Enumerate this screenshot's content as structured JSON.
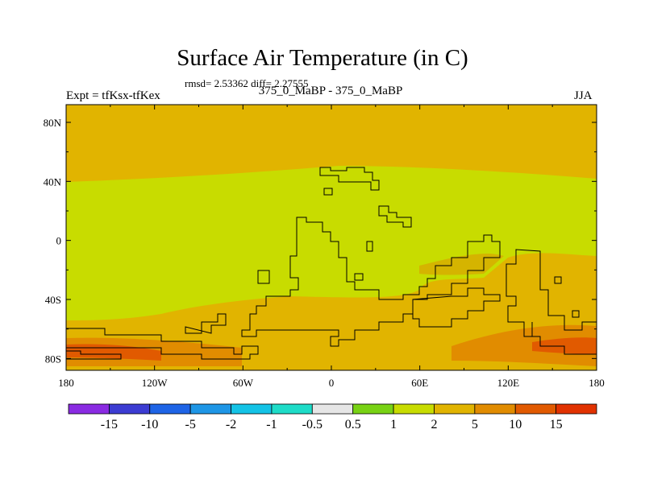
{
  "title": "Surface Air Temperature (in C)",
  "stats": "rmsd= 2.53362 diff= 2.27555",
  "experiment": "Expt = tfKsx-tfKex",
  "runs": "375_0_MaBP - 375_0_MaBP",
  "season": "JJA",
  "axes": {
    "lon_ticks": [
      {
        "lon": -180,
        "label": "180"
      },
      {
        "lon": -120,
        "label": "120W"
      },
      {
        "lon": -60,
        "label": "60W"
      },
      {
        "lon": 0,
        "label": "0"
      },
      {
        "lon": 60,
        "label": "60E"
      },
      {
        "lon": 120,
        "label": "120E"
      },
      {
        "lon": 180,
        "label": "180"
      }
    ],
    "lat_ticks": [
      {
        "lat": 80,
        "label": "80N"
      },
      {
        "lat": 40,
        "label": "40N"
      },
      {
        "lat": 0,
        "label": "0"
      },
      {
        "lat": -40,
        "label": "40S"
      },
      {
        "lat": -80,
        "label": "80S"
      }
    ]
  },
  "colorbar": {
    "colors": [
      "#8a2be2",
      "#3c3cd2",
      "#1e64e6",
      "#1e96e6",
      "#14c3e6",
      "#1edcc8",
      "#e6e6e6",
      "#78d214",
      "#c8dc00",
      "#e1b400",
      "#e18c00",
      "#e15a00",
      "#e13200"
    ],
    "labels": [
      "-15",
      "-10",
      "-5",
      "-2",
      "-1",
      "-0.5",
      "0.5",
      "1",
      "2",
      "5",
      "10",
      "15"
    ]
  }
}
